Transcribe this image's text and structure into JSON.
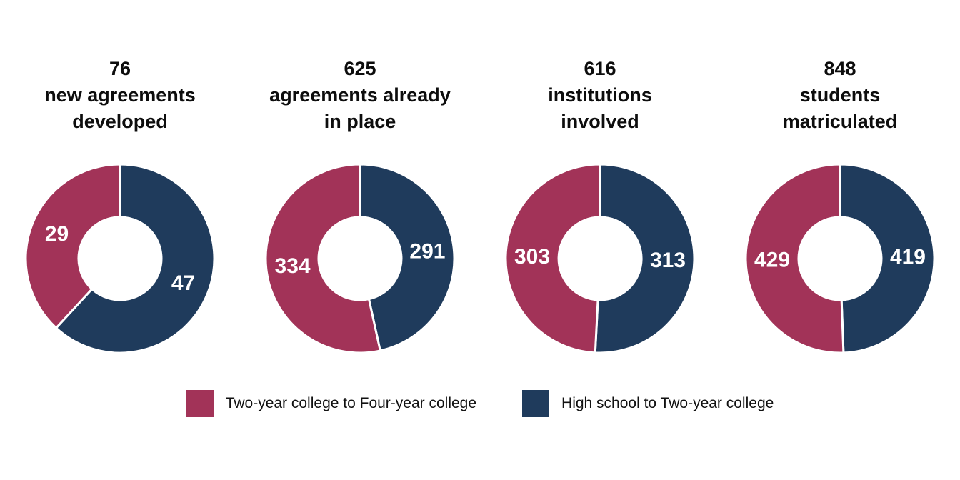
{
  "colors": {
    "crimson": "#A23358",
    "navy": "#1F3B5C"
  },
  "legend": [
    {
      "label": "Two-year college to Four-year college",
      "color": "crimson"
    },
    {
      "label": "High school to Two-year college",
      "color": "navy"
    }
  ],
  "chart_data": [
    {
      "type": "donut",
      "title": "76\nnew agreements\ndeveloped",
      "total": 76,
      "segments": [
        {
          "name": "High school to Two-year college",
          "value": 47,
          "color": "navy"
        },
        {
          "name": "Two-year college to Four-year college",
          "value": 29,
          "color": "crimson"
        }
      ]
    },
    {
      "type": "donut",
      "title": "625\nagreements already\nin place",
      "total": 625,
      "segments": [
        {
          "name": "High school to Two-year college",
          "value": 291,
          "color": "navy"
        },
        {
          "name": "Two-year college to Four-year college",
          "value": 334,
          "color": "crimson"
        }
      ]
    },
    {
      "type": "donut",
      "title": "616\ninstitutions\ninvolved",
      "total": 616,
      "segments": [
        {
          "name": "High school to Two-year college",
          "value": 313,
          "color": "navy"
        },
        {
          "name": "Two-year college to Four-year college",
          "value": 303,
          "color": "crimson"
        }
      ]
    },
    {
      "type": "donut",
      "title": "848\nstudents\nmatriculated",
      "total": 848,
      "segments": [
        {
          "name": "High school to Two-year college",
          "value": 419,
          "color": "navy"
        },
        {
          "name": "Two-year college to Four-year college",
          "value": 429,
          "color": "crimson"
        }
      ]
    }
  ]
}
